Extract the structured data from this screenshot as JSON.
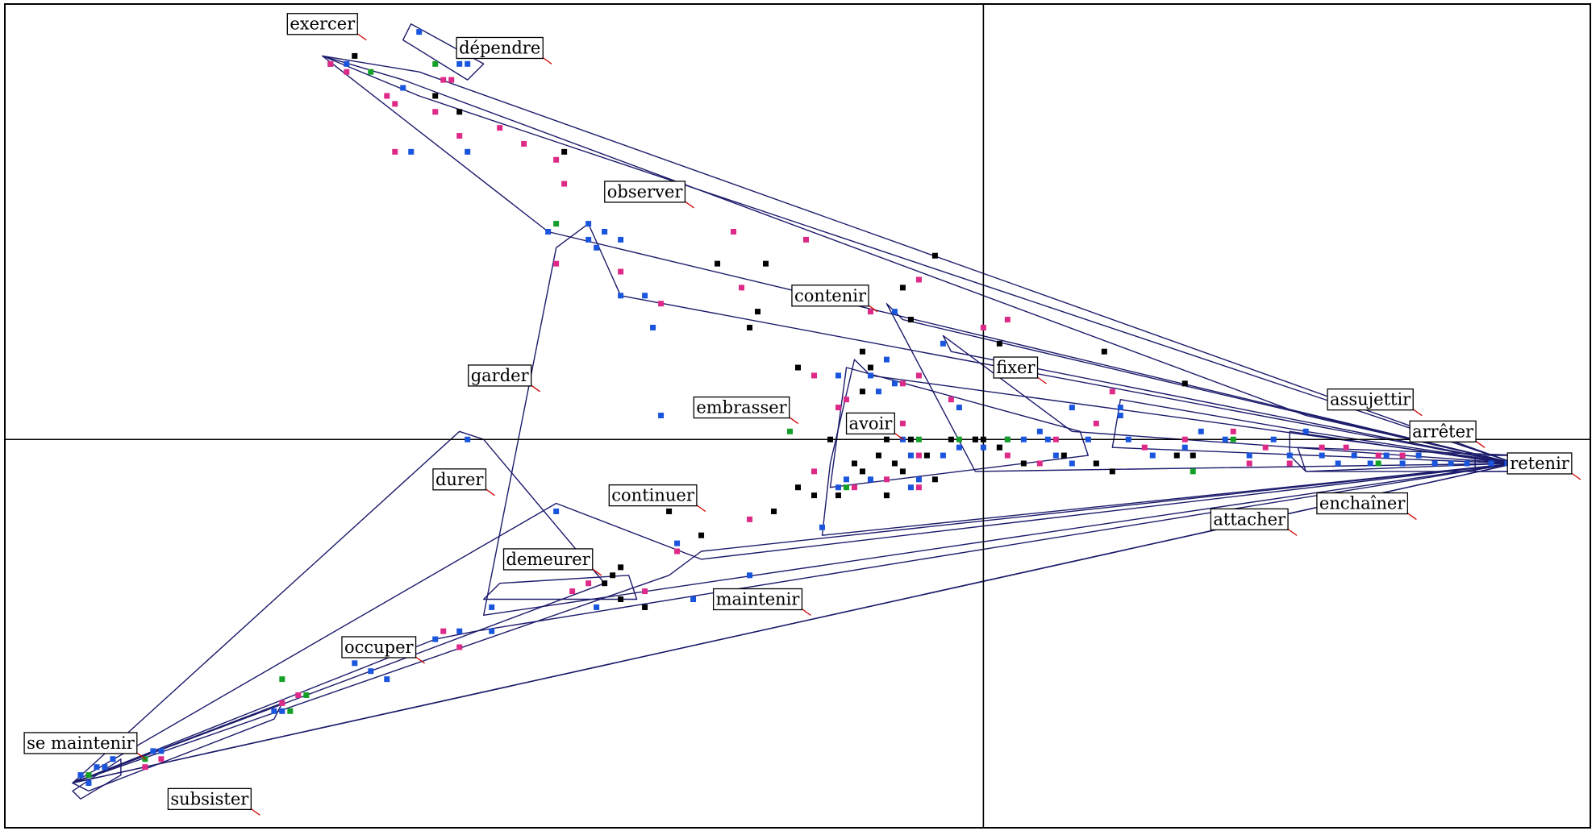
{
  "chart_data": {
    "type": "scatter",
    "title": "",
    "xlabel": "",
    "ylabel": "",
    "xlim": [
      -1.22,
      0.76
    ],
    "ylim": [
      -0.49,
      0.55
    ],
    "axes_cross_at_origin": true,
    "grid": false,
    "legend": "none",
    "colors": {
      "blue": "#1a55dd",
      "magenta": "#dd2a88",
      "black": "#000000",
      "green": "#14a028",
      "hull": "#1b1b6b",
      "leader": "#cc0000"
    },
    "labels": [
      {
        "text": "exercer",
        "x": -0.82,
        "y": 0.52
      },
      {
        "text": "dépendre",
        "x": -0.6,
        "y": 0.49
      },
      {
        "text": "observer",
        "x": -0.42,
        "y": 0.31
      },
      {
        "text": "contenir",
        "x": -0.19,
        "y": 0.18
      },
      {
        "text": "fixer",
        "x": 0.04,
        "y": 0.09
      },
      {
        "text": "garder",
        "x": -0.6,
        "y": 0.08
      },
      {
        "text": "embrasser",
        "x": -0.3,
        "y": 0.04
      },
      {
        "text": "avoir",
        "x": -0.14,
        "y": 0.02
      },
      {
        "text": "durer",
        "x": -0.65,
        "y": -0.05
      },
      {
        "text": "continuer",
        "x": -0.41,
        "y": -0.07
      },
      {
        "text": "demeurer",
        "x": -0.54,
        "y": -0.15
      },
      {
        "text": "maintenir",
        "x": -0.28,
        "y": -0.2
      },
      {
        "text": "occuper",
        "x": -0.75,
        "y": -0.26
      },
      {
        "text": "se maintenir",
        "x": -1.12,
        "y": -0.38
      },
      {
        "text": "subsister",
        "x": -0.96,
        "y": -0.45
      },
      {
        "text": "assujettir",
        "x": 0.48,
        "y": 0.05
      },
      {
        "text": "arrêter",
        "x": 0.57,
        "y": 0.01
      },
      {
        "text": "retenir",
        "x": 0.69,
        "y": -0.03
      },
      {
        "text": "enchaîner",
        "x": 0.47,
        "y": -0.08
      },
      {
        "text": "attacher",
        "x": 0.33,
        "y": -0.1
      }
    ],
    "series": [
      {
        "color": "blue",
        "points": [
          [
            -0.81,
            0.47
          ],
          [
            -0.79,
            0.47
          ],
          [
            -0.72,
            0.44
          ],
          [
            -0.7,
            0.51
          ],
          [
            -0.65,
            0.47
          ],
          [
            -0.64,
            0.47
          ],
          [
            -0.71,
            0.36
          ],
          [
            -0.64,
            0.36
          ],
          [
            -0.54,
            0.26
          ],
          [
            -0.49,
            0.27
          ],
          [
            -0.47,
            0.26
          ],
          [
            -0.45,
            0.25
          ],
          [
            -0.49,
            0.25
          ],
          [
            -0.48,
            0.24
          ],
          [
            -0.45,
            0.18
          ],
          [
            -0.42,
            0.18
          ],
          [
            -0.41,
            0.14
          ],
          [
            -0.11,
            0.16
          ],
          [
            -0.05,
            0.12
          ],
          [
            -0.12,
            0.1
          ],
          [
            -0.18,
            0.08
          ],
          [
            -0.14,
            0.08
          ],
          [
            -0.11,
            0.07
          ],
          [
            -0.13,
            0.06
          ],
          [
            -0.03,
            0.04
          ],
          [
            -0.4,
            0.03
          ],
          [
            -0.64,
            0.0
          ],
          [
            -0.1,
            0.0
          ],
          [
            -0.09,
            -0.02
          ],
          [
            -0.05,
            -0.02
          ],
          [
            -0.03,
            -0.01
          ],
          [
            -0.01,
            0.0
          ],
          [
            0.0,
            -0.01
          ],
          [
            0.02,
            -0.01
          ],
          [
            0.03,
            0.0
          ],
          [
            0.05,
            0.0
          ],
          [
            0.07,
            0.01
          ],
          [
            0.08,
            0.0
          ],
          [
            0.09,
            -0.02
          ],
          [
            0.11,
            -0.03
          ],
          [
            0.13,
            0.0
          ],
          [
            0.14,
            -0.03
          ],
          [
            0.17,
            0.04
          ],
          [
            0.18,
            0.0
          ],
          [
            0.21,
            -0.02
          ],
          [
            0.25,
            -0.01
          ],
          [
            0.27,
            0.01
          ],
          [
            0.3,
            0.0
          ],
          [
            0.33,
            -0.02
          ],
          [
            0.36,
            0.0
          ],
          [
            0.38,
            -0.02
          ],
          [
            0.4,
            0.01
          ],
          [
            0.42,
            -0.02
          ],
          [
            0.44,
            -0.03
          ],
          [
            0.46,
            -0.02
          ],
          [
            0.48,
            -0.03
          ],
          [
            0.5,
            -0.02
          ],
          [
            0.52,
            -0.03
          ],
          [
            0.54,
            -0.02
          ],
          [
            0.56,
            -0.03
          ],
          [
            0.58,
            -0.03
          ],
          [
            0.6,
            -0.03
          ],
          [
            0.63,
            -0.03
          ],
          [
            0.65,
            -0.03
          ],
          [
            0.11,
            0.04
          ],
          [
            0.17,
            0.03
          ],
          [
            -0.14,
            -0.05
          ],
          [
            -0.17,
            -0.05
          ],
          [
            -0.18,
            -0.06
          ],
          [
            -0.2,
            -0.11
          ],
          [
            -0.08,
            -0.05
          ],
          [
            -0.09,
            -0.06
          ],
          [
            -0.53,
            -0.09
          ],
          [
            -0.38,
            -0.13
          ],
          [
            -0.36,
            -0.2
          ],
          [
            -0.29,
            -0.17
          ],
          [
            -0.61,
            -0.21
          ],
          [
            -0.48,
            -0.21
          ],
          [
            -0.65,
            -0.24
          ],
          [
            -0.68,
            -0.25
          ],
          [
            -0.61,
            -0.24
          ],
          [
            -0.76,
            -0.29
          ],
          [
            -0.78,
            -0.28
          ],
          [
            -0.74,
            -0.3
          ],
          [
            -0.88,
            -0.34
          ],
          [
            -0.87,
            -0.34
          ],
          [
            -1.08,
            -0.4
          ],
          [
            -1.09,
            -0.41
          ],
          [
            -1.12,
            -0.42
          ],
          [
            -1.1,
            -0.41
          ],
          [
            -1.11,
            -0.43
          ],
          [
            -1.03,
            -0.39
          ],
          [
            -1.02,
            -0.39
          ]
        ]
      },
      {
        "color": "magenta",
        "points": [
          [
            -0.81,
            0.47
          ],
          [
            -0.79,
            0.46
          ],
          [
            -0.74,
            0.43
          ],
          [
            -0.73,
            0.42
          ],
          [
            -0.67,
            0.45
          ],
          [
            -0.66,
            0.45
          ],
          [
            -0.68,
            0.41
          ],
          [
            -0.73,
            0.36
          ],
          [
            -0.65,
            0.38
          ],
          [
            -0.6,
            0.39
          ],
          [
            -0.57,
            0.37
          ],
          [
            -0.53,
            0.35
          ],
          [
            -0.52,
            0.32
          ],
          [
            -0.53,
            0.22
          ],
          [
            -0.45,
            0.21
          ],
          [
            -0.4,
            0.17
          ],
          [
            -0.31,
            0.26
          ],
          [
            -0.3,
            0.19
          ],
          [
            -0.14,
            0.16
          ],
          [
            -0.1,
            0.07
          ],
          [
            -0.08,
            0.08
          ],
          [
            -0.17,
            0.05
          ],
          [
            -0.21,
            0.08
          ],
          [
            -0.18,
            0.04
          ],
          [
            -0.15,
            0.01
          ],
          [
            -0.1,
            0.02
          ],
          [
            -0.08,
            -0.02
          ],
          [
            -0.12,
            -0.05
          ],
          [
            -0.16,
            -0.06
          ],
          [
            -0.21,
            -0.04
          ],
          [
            -0.12,
            -0.07
          ],
          [
            -0.08,
            -0.06
          ],
          [
            -0.29,
            -0.1
          ],
          [
            -0.38,
            -0.14
          ],
          [
            -0.04,
            0.05
          ],
          [
            -0.01,
            0.0
          ],
          [
            0.03,
            -0.02
          ],
          [
            0.07,
            -0.03
          ],
          [
            0.09,
            0.0
          ],
          [
            0.16,
            0.06
          ],
          [
            0.14,
            0.02
          ],
          [
            0.2,
            -0.01
          ],
          [
            0.25,
            0.0
          ],
          [
            0.31,
            0.01
          ],
          [
            0.33,
            -0.03
          ],
          [
            0.35,
            -0.01
          ],
          [
            0.38,
            -0.03
          ],
          [
            0.42,
            -0.01
          ],
          [
            0.45,
            -0.01
          ],
          [
            0.49,
            -0.02
          ],
          [
            0.52,
            -0.02
          ],
          [
            0.0,
            0.14
          ],
          [
            0.03,
            0.15
          ],
          [
            -0.08,
            0.2
          ],
          [
            -0.22,
            0.25
          ],
          [
            -0.51,
            -0.19
          ],
          [
            -0.42,
            -0.19
          ],
          [
            -0.67,
            -0.24
          ],
          [
            -0.72,
            -0.27
          ],
          [
            -0.65,
            -0.26
          ],
          [
            -0.85,
            -0.32
          ],
          [
            -0.87,
            -0.33
          ],
          [
            -1.02,
            -0.4
          ],
          [
            -1.04,
            -0.41
          ],
          [
            -0.49,
            -0.18
          ]
        ]
      },
      {
        "color": "black",
        "points": [
          [
            -0.78,
            0.48
          ],
          [
            -0.68,
            0.43
          ],
          [
            -0.65,
            0.41
          ],
          [
            -0.52,
            0.36
          ],
          [
            -0.33,
            0.22
          ],
          [
            -0.27,
            0.22
          ],
          [
            -0.28,
            0.16
          ],
          [
            -0.29,
            0.14
          ],
          [
            -0.15,
            0.11
          ],
          [
            -0.23,
            0.09
          ],
          [
            -0.14,
            0.09
          ],
          [
            -0.15,
            0.06
          ],
          [
            -0.19,
            0.0
          ],
          [
            -0.12,
            0.0
          ],
          [
            -0.09,
            0.0
          ],
          [
            -0.13,
            -0.02
          ],
          [
            -0.11,
            -0.03
          ],
          [
            -0.15,
            -0.04
          ],
          [
            -0.16,
            -0.03
          ],
          [
            -0.1,
            -0.04
          ],
          [
            -0.18,
            -0.07
          ],
          [
            -0.26,
            -0.09
          ],
          [
            -0.23,
            -0.06
          ],
          [
            -0.21,
            -0.07
          ],
          [
            -0.12,
            -0.07
          ],
          [
            -0.06,
            -0.05
          ],
          [
            -0.07,
            -0.02
          ],
          [
            -0.04,
            0.0
          ],
          [
            -0.01,
            0.0
          ],
          [
            0.0,
            0.0
          ],
          [
            0.02,
            -0.01
          ],
          [
            0.05,
            -0.03
          ],
          [
            0.1,
            -0.02
          ],
          [
            0.14,
            -0.03
          ],
          [
            0.16,
            -0.04
          ],
          [
            0.24,
            -0.02
          ],
          [
            0.26,
            -0.02
          ],
          [
            -0.1,
            0.19
          ],
          [
            -0.06,
            0.23
          ],
          [
            -0.09,
            0.15
          ],
          [
            0.02,
            0.12
          ],
          [
            0.15,
            0.11
          ],
          [
            0.25,
            0.07
          ],
          [
            -0.39,
            -0.09
          ],
          [
            -0.35,
            -0.12
          ],
          [
            -0.45,
            -0.16
          ],
          [
            -0.46,
            -0.17
          ],
          [
            -0.47,
            -0.18
          ],
          [
            -0.42,
            -0.21
          ],
          [
            -0.45,
            -0.2
          ]
        ]
      },
      {
        "color": "green",
        "points": [
          [
            -0.76,
            0.46
          ],
          [
            -0.68,
            0.47
          ],
          [
            -0.53,
            0.27
          ],
          [
            -0.24,
            0.01
          ],
          [
            -0.17,
            -0.06
          ],
          [
            -0.08,
            0.0
          ],
          [
            -0.03,
            0.0
          ],
          [
            0.03,
            0.0
          ],
          [
            0.26,
            -0.04
          ],
          [
            0.31,
            0.0
          ],
          [
            0.49,
            -0.03
          ],
          [
            -0.87,
            -0.3
          ],
          [
            -0.84,
            -0.32
          ],
          [
            -0.86,
            -0.34
          ],
          [
            -1.11,
            -0.42
          ],
          [
            -1.04,
            -0.4
          ]
        ]
      }
    ]
  }
}
